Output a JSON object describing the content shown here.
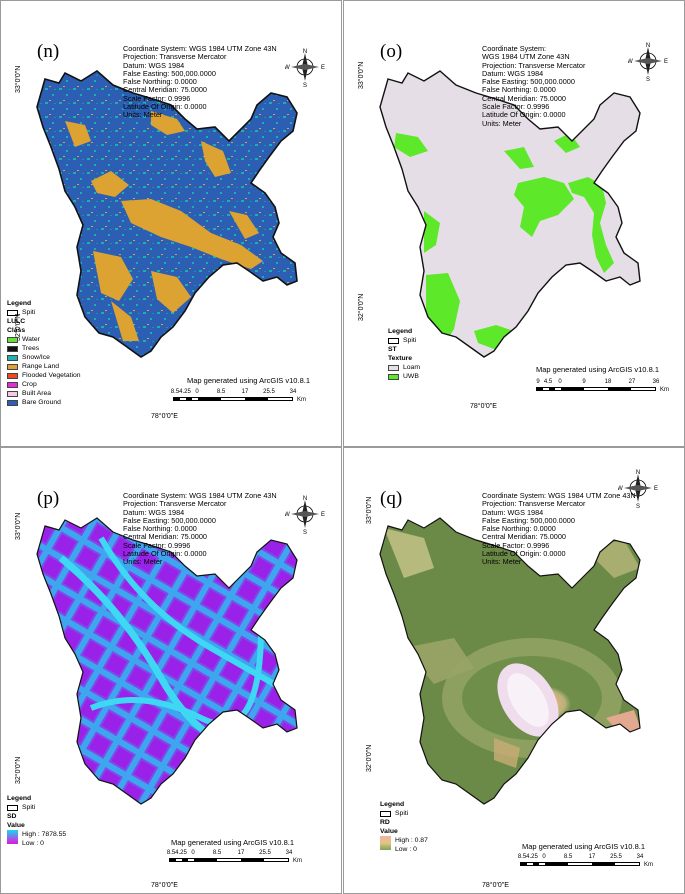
{
  "coord_lines": [
    "Coordinate System: WGS 1984 UTM Zone 43N",
    "Projection: Transverse Mercator",
    "Datum: WGS 1984",
    "False Easting: 500,000.0000",
    "False Northing: 0.0000",
    "Central Meridian: 75.0000",
    "Scale Factor: 0.9996",
    "Latitude Of Origin: 0.0000",
    "Units: Meter"
  ],
  "coord_lines_o": [
    "Coordinate System:",
    "WGS 1984 UTM Zone 43N",
    "Projection: Transverse Mercator",
    "Datum: WGS 1984",
    "False Easting: 500,000.0000",
    "False Northing: 0.0000",
    "Central Meridian: 75.0000",
    "Scale Factor: 0.9996",
    "Latitude Of Origin: 0.0000",
    "Units: Meter"
  ],
  "compass": {
    "n": "N",
    "s": "S",
    "e": "E",
    "w": "W"
  },
  "lat_top": "33°0'0\"N",
  "lat_bottom": "32°0'0\"N",
  "lon": "78°0'0\"E",
  "generated_note": "Map generated using ArcGIS v10.8.1",
  "km": "Km",
  "spiti": "Spiti",
  "legend_title": "Legend",
  "panels": {
    "n": {
      "tag": "(n)",
      "class_title": "LULC",
      "class_sub": "Class",
      "classes": [
        {
          "label": "Water",
          "color": "#63e03a"
        },
        {
          "label": "Trees",
          "color": "#111111"
        },
        {
          "label": "Snow/Ice",
          "color": "#1fb3b0"
        },
        {
          "label": "Range Land",
          "color": "#dca332"
        },
        {
          "label": "Flooded Vegetation",
          "color": "#f04a18"
        },
        {
          "label": "Crop",
          "color": "#e62bd6"
        },
        {
          "label": "Built Area",
          "color": "#f7c8e6"
        },
        {
          "label": "Bare Ground",
          "color": "#2b5fb5"
        }
      ],
      "scale_ticks": [
        "8.5",
        "4.25",
        "0",
        "8.5",
        "17",
        "25.5",
        "34"
      ]
    },
    "o": {
      "tag": "(o)",
      "class_title": "ST",
      "class_sub": "Texture",
      "classes": [
        {
          "label": "Loam",
          "color": "#e8e0e8"
        },
        {
          "label": "UWB",
          "color": "#5ee82a"
        }
      ],
      "scale_ticks": [
        "9",
        "4.5",
        "0",
        "9",
        "18",
        "27",
        "36"
      ]
    },
    "p": {
      "tag": "(p)",
      "class_title": "SD",
      "class_sub": "Value",
      "high": "High : 7878.55",
      "low": "Low : 0",
      "colors": {
        "high": "#1dd6f0",
        "low": "#e414e0"
      },
      "scale_ticks": [
        "8.5",
        "4.25",
        "0",
        "8.5",
        "17",
        "25.5",
        "34"
      ]
    },
    "q": {
      "tag": "(q)",
      "class_title": "RD",
      "class_sub": "Value",
      "high": "High : 0.87",
      "low": "Low : 0",
      "colors": {
        "high": "#f3b2a4",
        "low": "#7ea35a"
      },
      "scale_ticks": [
        "8.5",
        "4.25",
        "0",
        "8.5",
        "17",
        "25.5",
        "34"
      ]
    }
  }
}
